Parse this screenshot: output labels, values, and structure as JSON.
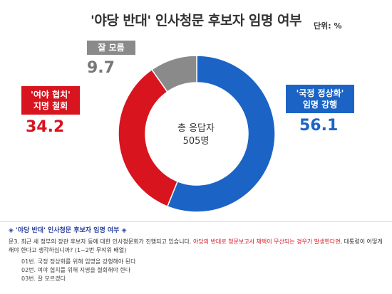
{
  "title": "'야당 반대' 인사청문 후보자 임명 여부",
  "unit_label": "단위: %",
  "center": {
    "line1": "총 응답자",
    "line2": "505명"
  },
  "labels": {
    "red": [
      "'여야 협치'",
      "지명 철회"
    ],
    "blue": [
      "'국정 정상화'",
      "임명 강행"
    ],
    "gray": [
      "잘 모름"
    ]
  },
  "colors": {
    "blue": "#1b64c6",
    "red": "#d8141f",
    "gray": "#8a8a8a"
  },
  "chart_data": {
    "type": "pie",
    "title": "'야당 반대' 인사청문 후보자 임명 여부",
    "unit": "%",
    "total_respondents": "505명",
    "categories": [
      "'국정 정상화' 임명 강행",
      "'여야 협치' 지명 철회",
      "잘 모름"
    ],
    "values": [
      56.1,
      34.2,
      9.7
    ],
    "value_labels": [
      "56.1",
      "34.2",
      "9.7"
    ]
  },
  "footer": {
    "heading": "◈ '야당 반대' 인사청문 후보자 임명 여부 ◈",
    "question_prefix": "문3. 최근 새 정부의 장관 후보자 등에 대한 인사청문회가 진행되고 있습니다. ",
    "question_highlight": "야당의 반대로 청문보고서 채택이 무산되는 경우가 발생한다면,",
    "question_suffix": " 대통령이 어떻게 해야 한다고 생각하십니까? (1~2번 무작위 배열)",
    "options": [
      "01번. 국정 정상화를 위해 임명을 강행해야 된다",
      "02번. 여야 협치를 위해 지명을 철회해야 한다",
      "03번. 잘 모르겠다"
    ]
  }
}
